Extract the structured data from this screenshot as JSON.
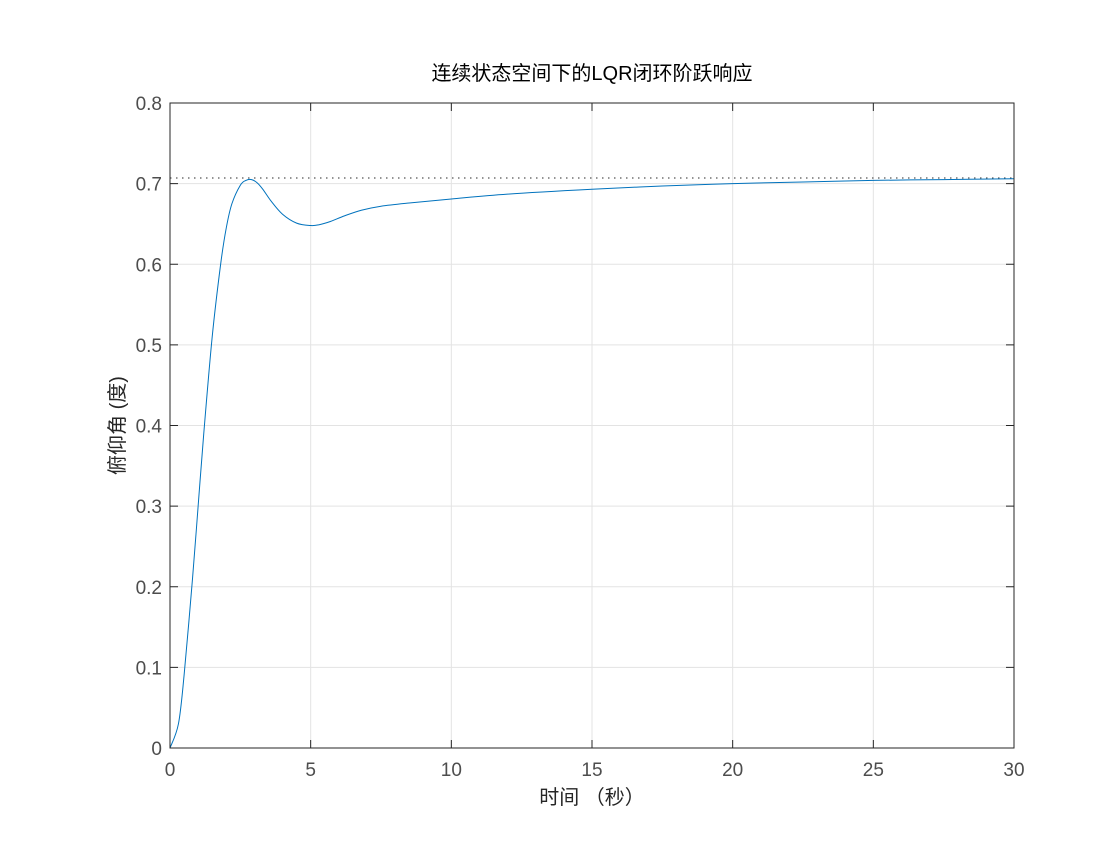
{
  "chart_data": {
    "type": "line",
    "title": "连续状态空间下的LQR闭环阶跃响应",
    "xlabel": "时间 （秒）",
    "ylabel": "俯仰角 (度)",
    "xlim": [
      0,
      30
    ],
    "ylim": [
      0,
      0.8
    ],
    "xticks": [
      0,
      5,
      10,
      15,
      20,
      25,
      30
    ],
    "yticks": [
      0,
      0.1,
      0.2,
      0.3,
      0.4,
      0.5,
      0.6,
      0.7,
      0.8
    ],
    "grid": true,
    "steady_state_value": 0.707,
    "steady_state_line_style": "dotted",
    "series": [
      {
        "color": "#0072bd",
        "x": [
          0,
          0.3,
          0.5,
          0.8,
          1.0,
          1.2,
          1.5,
          1.8,
          2.0,
          2.2,
          2.5,
          2.7,
          2.9,
          3.1,
          3.3,
          3.6,
          4.0,
          4.5,
          5.0,
          5.3,
          5.7,
          6.2,
          6.8,
          7.5,
          8.5,
          10,
          12,
          15,
          17.5,
          20,
          22.5,
          25,
          27.5,
          30
        ],
        "y": [
          0,
          0.03,
          0.09,
          0.21,
          0.3,
          0.39,
          0.51,
          0.6,
          0.645,
          0.675,
          0.698,
          0.704,
          0.705,
          0.701,
          0.693,
          0.678,
          0.662,
          0.651,
          0.648,
          0.649,
          0.653,
          0.66,
          0.667,
          0.672,
          0.676,
          0.681,
          0.687,
          0.693,
          0.697,
          0.7,
          0.702,
          0.704,
          0.705,
          0.706
        ]
      }
    ]
  }
}
